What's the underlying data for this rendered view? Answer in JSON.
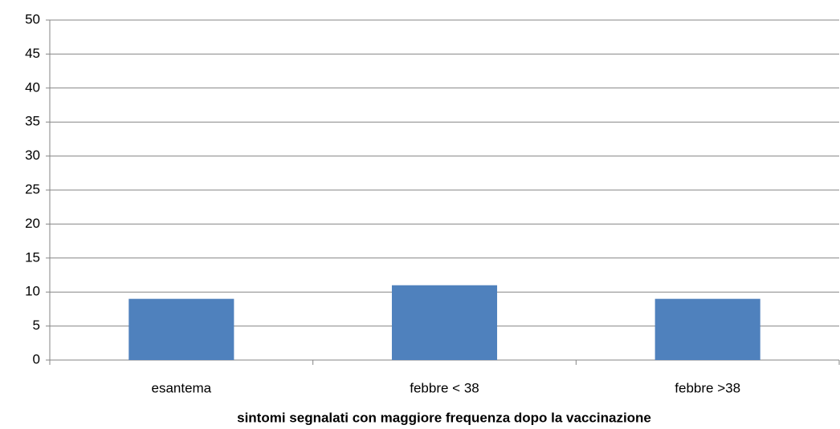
{
  "chart_data": {
    "type": "bar",
    "x_label": "sintomi segnalati con maggiore frequenza dopo la vaccinazione",
    "categories": [
      "esantema",
      "febbre < 38",
      "febbre >38"
    ],
    "values": [
      9,
      11,
      9
    ],
    "color": "#4f81bd",
    "ylim": [
      0,
      50
    ],
    "yticks": [
      0,
      5,
      10,
      15,
      20,
      25,
      30,
      35,
      40,
      45,
      50
    ],
    "grid": true
  }
}
